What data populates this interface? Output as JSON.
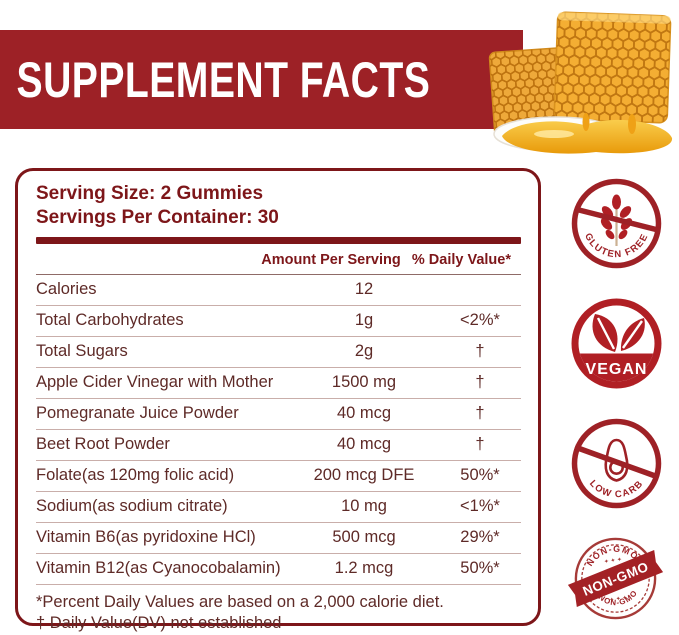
{
  "banner": {
    "title": "SUPPLEMENT FACTS"
  },
  "panel": {
    "serving_size": "Serving Size: 2 Gummies",
    "servings_per_container": "Servings Per Container: 30",
    "columns": {
      "amount": "Amount Per Serving",
      "daily_value": "% Daily Value*"
    },
    "rows": [
      {
        "name": "Calories",
        "amount": "12",
        "dv": ""
      },
      {
        "name": "Total Carbohydrates",
        "amount": "1g",
        "dv": "<2%*"
      },
      {
        "name": "Total Sugars",
        "amount": "2g",
        "dv": "†"
      },
      {
        "name": "Apple Cider Vinegar with Mother",
        "amount": "1500 mg",
        "dv": "†"
      },
      {
        "name": "Pomegranate Juice Powder",
        "amount": "40 mcg",
        "dv": "†"
      },
      {
        "name": "Beet Root Powder",
        "amount": "40 mcg",
        "dv": "†"
      },
      {
        "name": "Folate(as 120mg folic acid)",
        "amount": "200 mcg DFE",
        "dv": "50%*"
      },
      {
        "name": "Sodium(as sodium citrate)",
        "amount": "10 mg",
        "dv": "<1%*"
      },
      {
        "name": "Vitamin B6(as pyridoxine HCl)",
        "amount": "500 mcg",
        "dv": "29%*"
      },
      {
        "name": "Vitamin B12(as Cyanocobalamin)",
        "amount": "1.2 mcg",
        "dv": "50%*"
      }
    ],
    "footnotes": [
      "*Percent Daily Values are based on a 2,000 calorie diet.",
      "† Daily Value(DV) not established"
    ]
  },
  "badges": [
    {
      "id": "gluten-free",
      "label": "GLUTEN FREE"
    },
    {
      "id": "vegan",
      "label": "VEGAN"
    },
    {
      "id": "low-carb",
      "label": "LOW CARB"
    },
    {
      "id": "non-gmo",
      "label": "NON-GMO"
    }
  ],
  "colors": {
    "banner_red": "#9D2126",
    "panel_maroon": "#7D1619",
    "row_text": "#5E2A27",
    "badge_red": "#A32125",
    "honey_gold": "#F4AE33"
  }
}
